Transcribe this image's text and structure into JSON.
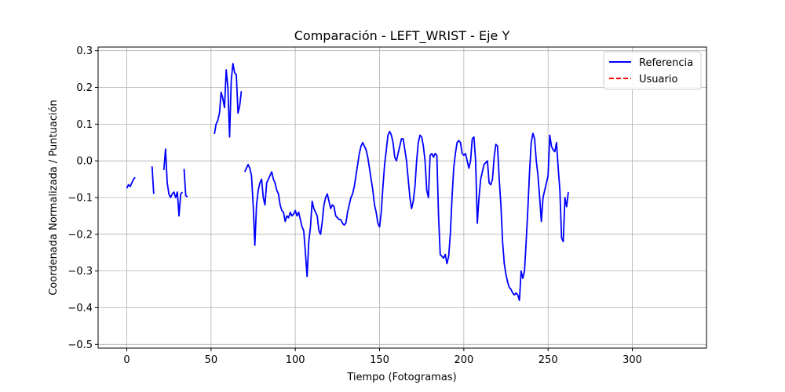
{
  "chart_data": {
    "type": "line",
    "title": "Comparación - LEFT_WRIST - Eje Y",
    "xlabel": "Tiempo (Fotogramas)",
    "ylabel": "Coordenada Normalizada / Puntuación",
    "xlim": [
      -17,
      344
    ],
    "ylim": [
      -0.51,
      0.31
    ],
    "xticks": [
      0,
      50,
      100,
      150,
      200,
      250,
      300
    ],
    "yticks": [
      -0.5,
      -0.4,
      -0.3,
      -0.2,
      -0.1,
      0.0,
      0.1,
      0.2,
      0.3
    ],
    "xtick_labels": [
      "0",
      "50",
      "100",
      "150",
      "200",
      "250",
      "300"
    ],
    "ytick_labels": [
      "−0.5",
      "−0.4",
      "−0.3",
      "−0.2",
      "−0.1",
      "0.0",
      "0.1",
      "0.2",
      "0.3"
    ],
    "grid": true,
    "legend_position": "top-right",
    "series": [
      {
        "name": "Referencia",
        "color": "#0000ff",
        "style": "solid",
        "segments": [
          [
            [
              0,
              -0.075
            ],
            [
              1,
              -0.065
            ],
            [
              2,
              -0.07
            ],
            [
              3,
              -0.06
            ],
            [
              4,
              -0.05
            ],
            [
              5,
              -0.045
            ]
          ],
          [
            [
              15,
              -0.015
            ],
            [
              16,
              -0.09
            ]
          ],
          [
            [
              22,
              -0.025
            ],
            [
              23,
              0.032
            ],
            [
              24,
              -0.06
            ],
            [
              25,
              -0.09
            ],
            [
              26,
              -0.1
            ],
            [
              27,
              -0.09
            ],
            [
              28,
              -0.085
            ],
            [
              29,
              -0.1
            ],
            [
              30,
              -0.085
            ],
            [
              31,
              -0.15
            ],
            [
              32,
              -0.09
            ],
            [
              33,
              -0.085
            ]
          ],
          [
            [
              34,
              -0.022
            ],
            [
              35,
              -0.095
            ],
            [
              36,
              -0.098
            ]
          ],
          [
            [
              52,
              0.073
            ],
            [
              53,
              0.1
            ],
            [
              54,
              0.11
            ],
            [
              55,
              0.13
            ],
            [
              56,
              0.187
            ],
            [
              57,
              0.17
            ],
            [
              58,
              0.145
            ],
            [
              59,
              0.248
            ],
            [
              60,
              0.2
            ],
            [
              61,
              0.065
            ],
            [
              62,
              0.22
            ],
            [
              63,
              0.265
            ],
            [
              64,
              0.24
            ],
            [
              65,
              0.235
            ],
            [
              66,
              0.13
            ],
            [
              67,
              0.15
            ],
            [
              68,
              0.19
            ]
          ],
          [
            [
              70,
              -0.03
            ],
            [
              71,
              -0.02
            ],
            [
              72,
              -0.01
            ],
            [
              73,
              -0.02
            ],
            [
              74,
              -0.04
            ],
            [
              75,
              -0.12
            ],
            [
              76,
              -0.23
            ],
            [
              77,
              -0.12
            ],
            [
              78,
              -0.08
            ],
            [
              79,
              -0.06
            ],
            [
              80,
              -0.05
            ],
            [
              81,
              -0.1
            ],
            [
              82,
              -0.12
            ],
            [
              83,
              -0.06
            ],
            [
              84,
              -0.05
            ],
            [
              85,
              -0.04
            ],
            [
              86,
              -0.03
            ],
            [
              87,
              -0.05
            ],
            [
              88,
              -0.06
            ],
            [
              89,
              -0.08
            ],
            [
              90,
              -0.09
            ],
            [
              91,
              -0.12
            ],
            [
              92,
              -0.135
            ],
            [
              93,
              -0.14
            ],
            [
              94,
              -0.165
            ],
            [
              95,
              -0.15
            ],
            [
              96,
              -0.155
            ],
            [
              97,
              -0.14
            ],
            [
              98,
              -0.15
            ],
            [
              99,
              -0.145
            ],
            [
              100,
              -0.135
            ],
            [
              101,
              -0.15
            ],
            [
              102,
              -0.14
            ],
            [
              103,
              -0.16
            ],
            [
              104,
              -0.18
            ],
            [
              105,
              -0.19
            ],
            [
              106,
              -0.25
            ],
            [
              107,
              -0.315
            ],
            [
              108,
              -0.22
            ],
            [
              109,
              -0.18
            ],
            [
              110,
              -0.11
            ],
            [
              111,
              -0.13
            ],
            [
              112,
              -0.14
            ],
            [
              113,
              -0.15
            ],
            [
              114,
              -0.19
            ],
            [
              115,
              -0.2
            ],
            [
              116,
              -0.165
            ],
            [
              117,
              -0.12
            ],
            [
              118,
              -0.1
            ],
            [
              119,
              -0.09
            ],
            [
              120,
              -0.11
            ],
            [
              121,
              -0.13
            ],
            [
              122,
              -0.12
            ],
            [
              123,
              -0.125
            ],
            [
              124,
              -0.15
            ],
            [
              125,
              -0.155
            ],
            [
              126,
              -0.16
            ],
            [
              127,
              -0.16
            ],
            [
              128,
              -0.17
            ],
            [
              129,
              -0.175
            ],
            [
              130,
              -0.17
            ],
            [
              131,
              -0.14
            ],
            [
              132,
              -0.12
            ],
            [
              133,
              -0.1
            ],
            [
              134,
              -0.09
            ],
            [
              135,
              -0.07
            ],
            [
              136,
              -0.04
            ],
            [
              137,
              -0.01
            ],
            [
              138,
              0.02
            ],
            [
              139,
              0.04
            ],
            [
              140,
              0.05
            ],
            [
              141,
              0.04
            ],
            [
              142,
              0.03
            ],
            [
              143,
              0.01
            ],
            [
              144,
              -0.02
            ],
            [
              145,
              -0.05
            ],
            [
              146,
              -0.08
            ],
            [
              147,
              -0.12
            ],
            [
              148,
              -0.14
            ],
            [
              149,
              -0.17
            ],
            [
              150,
              -0.18
            ],
            [
              151,
              -0.14
            ],
            [
              152,
              -0.07
            ],
            [
              153,
              -0.01
            ],
            [
              154,
              0.03
            ],
            [
              155,
              0.07
            ],
            [
              156,
              0.08
            ],
            [
              157,
              0.07
            ],
            [
              158,
              0.05
            ],
            [
              159,
              0.01
            ],
            [
              160,
              0.0
            ],
            [
              161,
              0.02
            ],
            [
              162,
              0.04
            ],
            [
              163,
              0.06
            ],
            [
              164,
              0.06
            ],
            [
              165,
              0.03
            ],
            [
              166,
              0.0
            ],
            [
              167,
              -0.05
            ],
            [
              168,
              -0.1
            ],
            [
              169,
              -0.13
            ],
            [
              170,
              -0.11
            ],
            [
              171,
              -0.07
            ],
            [
              172,
              0.0
            ],
            [
              173,
              0.05
            ],
            [
              174,
              0.07
            ],
            [
              175,
              0.065
            ],
            [
              176,
              0.04
            ],
            [
              177,
              0.0
            ],
            [
              178,
              -0.08
            ],
            [
              179,
              -0.1
            ],
            [
              180,
              0.015
            ],
            [
              181,
              0.02
            ],
            [
              182,
              0.01
            ],
            [
              183,
              0.02
            ],
            [
              184,
              0.015
            ],
            [
              185,
              -0.15
            ],
            [
              186,
              -0.255
            ],
            [
              187,
              -0.26
            ],
            [
              188,
              -0.265
            ],
            [
              189,
              -0.255
            ],
            [
              190,
              -0.28
            ],
            [
              191,
              -0.26
            ],
            [
              192,
              -0.2
            ],
            [
              193,
              -0.1
            ],
            [
              194,
              -0.02
            ],
            [
              195,
              0.02
            ],
            [
              196,
              0.05
            ],
            [
              197,
              0.055
            ],
            [
              198,
              0.05
            ],
            [
              199,
              0.02
            ],
            [
              200,
              0.015
            ],
            [
              201,
              0.02
            ],
            [
              202,
              0.0
            ],
            [
              203,
              -0.02
            ],
            [
              204,
              0.0
            ],
            [
              205,
              0.06
            ],
            [
              206,
              0.065
            ],
            [
              207,
              0.0
            ],
            [
              208,
              -0.17
            ],
            [
              209,
              -0.1
            ],
            [
              210,
              -0.05
            ],
            [
              211,
              -0.03
            ],
            [
              212,
              -0.01
            ],
            [
              213,
              -0.005
            ],
            [
              214,
              0.0
            ],
            [
              215,
              -0.06
            ],
            [
              216,
              -0.065
            ],
            [
              217,
              -0.05
            ],
            [
              218,
              0.01
            ],
            [
              219,
              0.045
            ],
            [
              220,
              0.04
            ],
            [
              221,
              -0.05
            ],
            [
              222,
              -0.12
            ],
            [
              223,
              -0.22
            ],
            [
              224,
              -0.28
            ],
            [
              225,
              -0.31
            ],
            [
              226,
              -0.33
            ],
            [
              227,
              -0.345
            ],
            [
              228,
              -0.35
            ],
            [
              229,
              -0.36
            ],
            [
              230,
              -0.365
            ],
            [
              231,
              -0.36
            ],
            [
              232,
              -0.365
            ],
            [
              233,
              -0.38
            ],
            [
              234,
              -0.3
            ],
            [
              235,
              -0.32
            ],
            [
              236,
              -0.3
            ],
            [
              237,
              -0.22
            ],
            [
              238,
              -0.13
            ],
            [
              239,
              -0.03
            ],
            [
              240,
              0.05
            ],
            [
              241,
              0.075
            ],
            [
              242,
              0.06
            ],
            [
              243,
              0.0
            ],
            [
              244,
              -0.04
            ],
            [
              245,
              -0.1
            ],
            [
              246,
              -0.165
            ],
            [
              247,
              -0.1
            ],
            [
              248,
              -0.08
            ],
            [
              249,
              -0.06
            ],
            [
              250,
              -0.04
            ],
            [
              251,
              0.07
            ],
            [
              252,
              0.04
            ],
            [
              253,
              0.03
            ],
            [
              254,
              0.025
            ],
            [
              255,
              0.05
            ],
            [
              256,
              -0.02
            ],
            [
              257,
              -0.08
            ],
            [
              258,
              -0.21
            ],
            [
              259,
              -0.22
            ],
            [
              260,
              -0.1
            ],
            [
              261,
              -0.125
            ],
            [
              262,
              -0.085
            ]
          ]
        ]
      },
      {
        "name": "Usuario",
        "color": "#ff0000",
        "style": "dashed",
        "segments": []
      }
    ]
  }
}
